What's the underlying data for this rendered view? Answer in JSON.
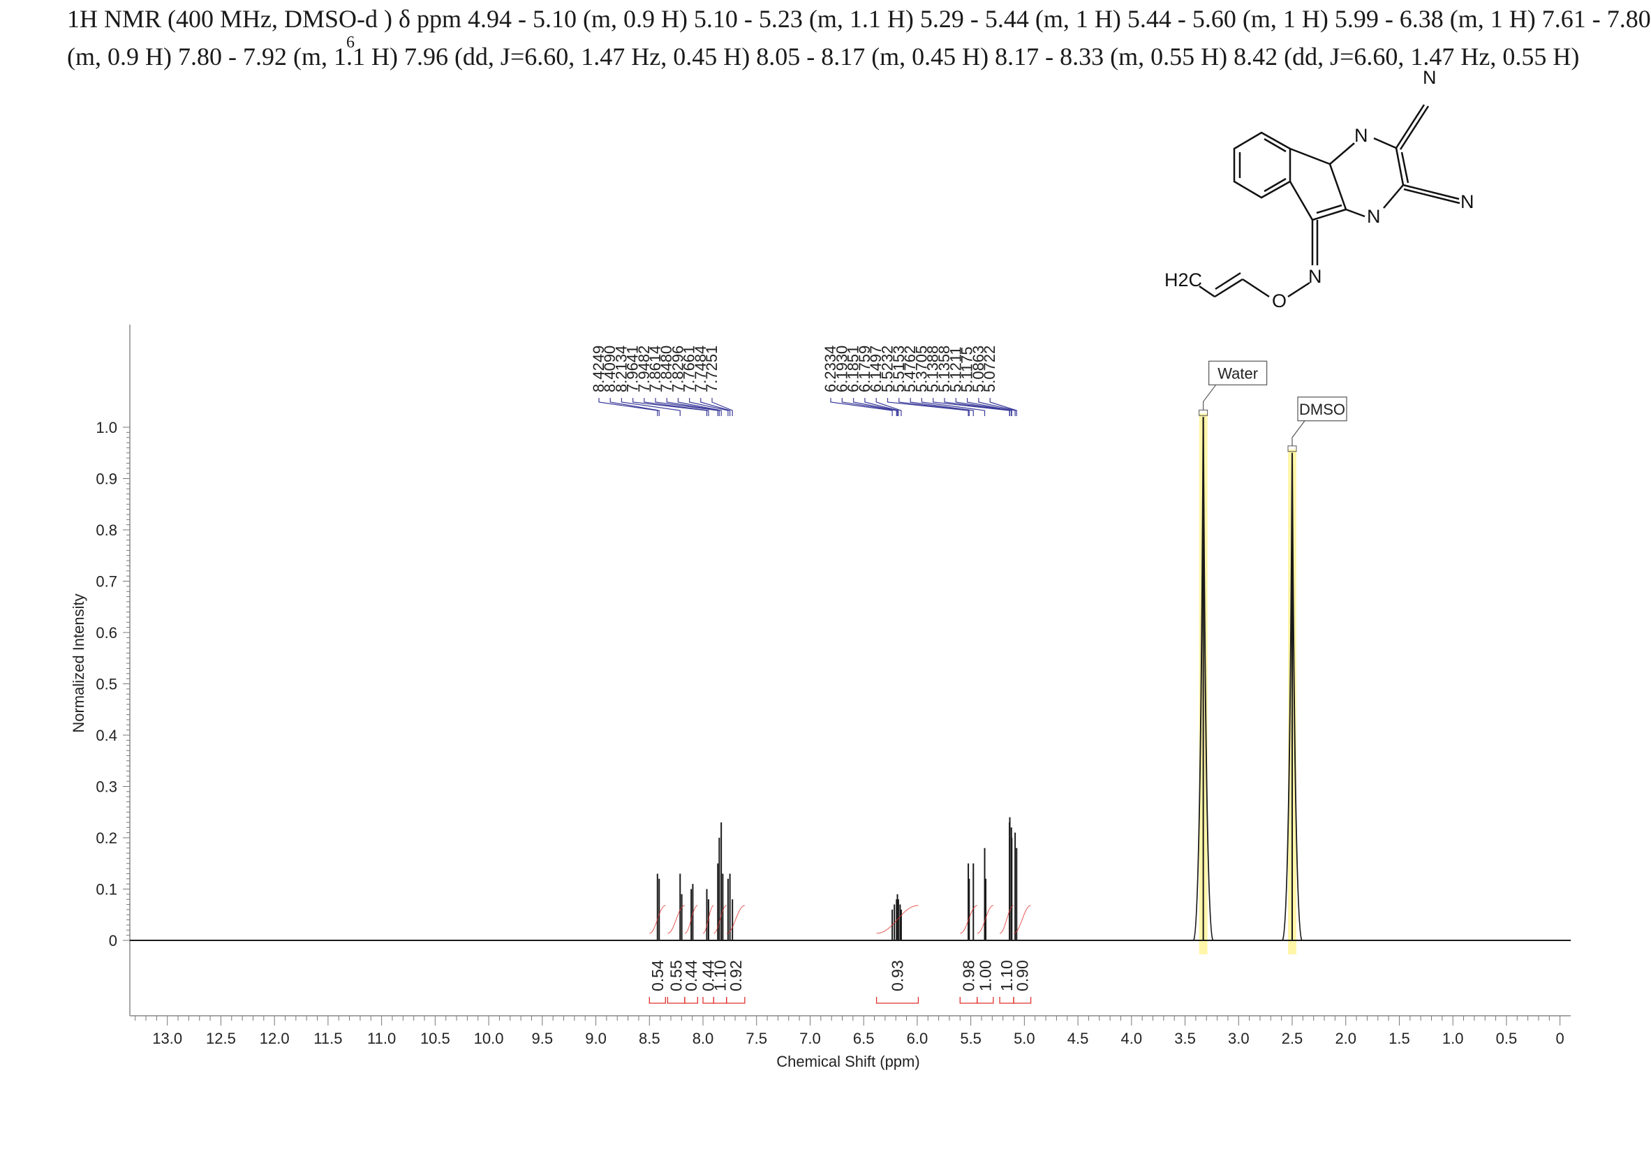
{
  "header": {
    "line1": "1H NMR (400 MHz, DMSO-d ) δ ppm 4.94 - 5.10 (m, 0.9 H) 5.10 - 5.23 (m, 1.1 H) 5.29 - 5.44 (m, 1 H) 5.44 - 5.60 (m, 1 H) 5.99 - 6.38 (m, 1 H) 7.61 - 7.80",
    "subscript": "6",
    "line2": "(m, 0.9 H) 7.80 - 7.92 (m, 1.1 H) 7.96 (dd, J=6.60, 1.47 Hz, 0.45 H) 8.05 - 8.17 (m, 0.45 H) 8.17 - 8.33 (m, 0.55 H) 8.42 (dd, J=6.60, 1.47 Hz, 0.55 H)"
  },
  "molecule": {
    "atoms": [
      "N",
      "N",
      "N",
      "N",
      "N",
      "O",
      "H2C"
    ]
  },
  "colors": {
    "spectrum": "#1a1a1a",
    "peak_labels": "#3a3a9a",
    "integrals": "#e0302a",
    "highlight": "#fff59a"
  },
  "chart_data": {
    "type": "line",
    "xlabel": "Chemical Shift (ppm)",
    "ylabel": "Normalized Intensity",
    "xlim": [
      13.35,
      -0.1
    ],
    "ylim": [
      -0.15,
      1.2
    ],
    "x_ticks": [
      "13.0",
      "12.5",
      "12.0",
      "11.5",
      "11.0",
      "10.5",
      "10.0",
      "9.5",
      "9.0",
      "8.5",
      "8.0",
      "7.5",
      "7.0",
      "6.5",
      "6.0",
      "5.5",
      "5.0",
      "4.5",
      "4.0",
      "3.5",
      "3.0",
      "2.5",
      "2.0",
      "1.5",
      "1.0",
      "0.5",
      "0"
    ],
    "y_ticks": [
      "0",
      "0.1",
      "0.2",
      "0.3",
      "0.4",
      "0.5",
      "0.6",
      "0.7",
      "0.8",
      "0.9",
      "1.0"
    ],
    "peak_labels_group1": [
      "8.4249",
      "8.4090",
      "8.2134",
      "7.9641",
      "7.9482",
      "7.8614",
      "7.8480",
      "7.8296",
      "7.7661",
      "7.7484",
      "7.7251"
    ],
    "peak_labels_group2": [
      "6.2334",
      "6.1930",
      "6.1851",
      "6.1759",
      "6.1497",
      "5.5232",
      "5.5153",
      "5.4762",
      "5.3705",
      "5.1388",
      "5.1358",
      "5.1211",
      "5.1175",
      "5.0863",
      "5.0722"
    ],
    "peaks": [
      {
        "x": 8.4249,
        "y": 0.13
      },
      {
        "x": 8.409,
        "y": 0.12
      },
      {
        "x": 8.2134,
        "y": 0.13
      },
      {
        "x": 8.198,
        "y": 0.09
      },
      {
        "x": 8.11,
        "y": 0.1
      },
      {
        "x": 8.095,
        "y": 0.11
      },
      {
        "x": 7.9641,
        "y": 0.1
      },
      {
        "x": 7.9482,
        "y": 0.08
      },
      {
        "x": 7.8614,
        "y": 0.15
      },
      {
        "x": 7.848,
        "y": 0.2
      },
      {
        "x": 7.8296,
        "y": 0.23
      },
      {
        "x": 7.815,
        "y": 0.13
      },
      {
        "x": 7.7661,
        "y": 0.12
      },
      {
        "x": 7.7484,
        "y": 0.13
      },
      {
        "x": 7.7251,
        "y": 0.08
      },
      {
        "x": 6.2334,
        "y": 0.06
      },
      {
        "x": 6.2134,
        "y": 0.07
      },
      {
        "x": 6.193,
        "y": 0.08
      },
      {
        "x": 6.1851,
        "y": 0.09
      },
      {
        "x": 6.1759,
        "y": 0.08
      },
      {
        "x": 6.1597,
        "y": 0.07
      },
      {
        "x": 6.1497,
        "y": 0.06
      },
      {
        "x": 5.5232,
        "y": 0.15
      },
      {
        "x": 5.5153,
        "y": 0.12
      },
      {
        "x": 5.4762,
        "y": 0.15
      },
      {
        "x": 5.3705,
        "y": 0.18
      },
      {
        "x": 5.3605,
        "y": 0.12
      },
      {
        "x": 5.1388,
        "y": 0.23
      },
      {
        "x": 5.1358,
        "y": 0.24
      },
      {
        "x": 5.1211,
        "y": 0.22
      },
      {
        "x": 5.1175,
        "y": 0.2
      },
      {
        "x": 5.0863,
        "y": 0.21
      },
      {
        "x": 5.0722,
        "y": 0.18
      },
      {
        "x": 3.33,
        "y": 1.02
      },
      {
        "x": 2.5,
        "y": 0.95
      }
    ],
    "solvent_labels": [
      {
        "text": "Water",
        "x": 3.33,
        "y": 1.02
      },
      {
        "text": "DMSO",
        "x": 2.5,
        "y": 0.95
      }
    ],
    "integrals": [
      {
        "value": "0.54",
        "from": 8.5,
        "to": 8.35
      },
      {
        "value": "0.55",
        "from": 8.33,
        "to": 8.17
      },
      {
        "value": "0.44",
        "from": 8.17,
        "to": 8.05
      },
      {
        "value": "0.44",
        "from": 8.0,
        "to": 7.9
      },
      {
        "value": "1.10",
        "from": 7.9,
        "to": 7.78
      },
      {
        "value": "0.92",
        "from": 7.78,
        "to": 7.61
      },
      {
        "value": "0.93",
        "from": 6.38,
        "to": 5.99
      },
      {
        "value": "0.98",
        "from": 5.6,
        "to": 5.44
      },
      {
        "value": "1.00",
        "from": 5.44,
        "to": 5.29
      },
      {
        "value": "1.10",
        "from": 5.23,
        "to": 5.1
      },
      {
        "value": "0.90",
        "from": 5.1,
        "to": 4.94
      }
    ]
  }
}
